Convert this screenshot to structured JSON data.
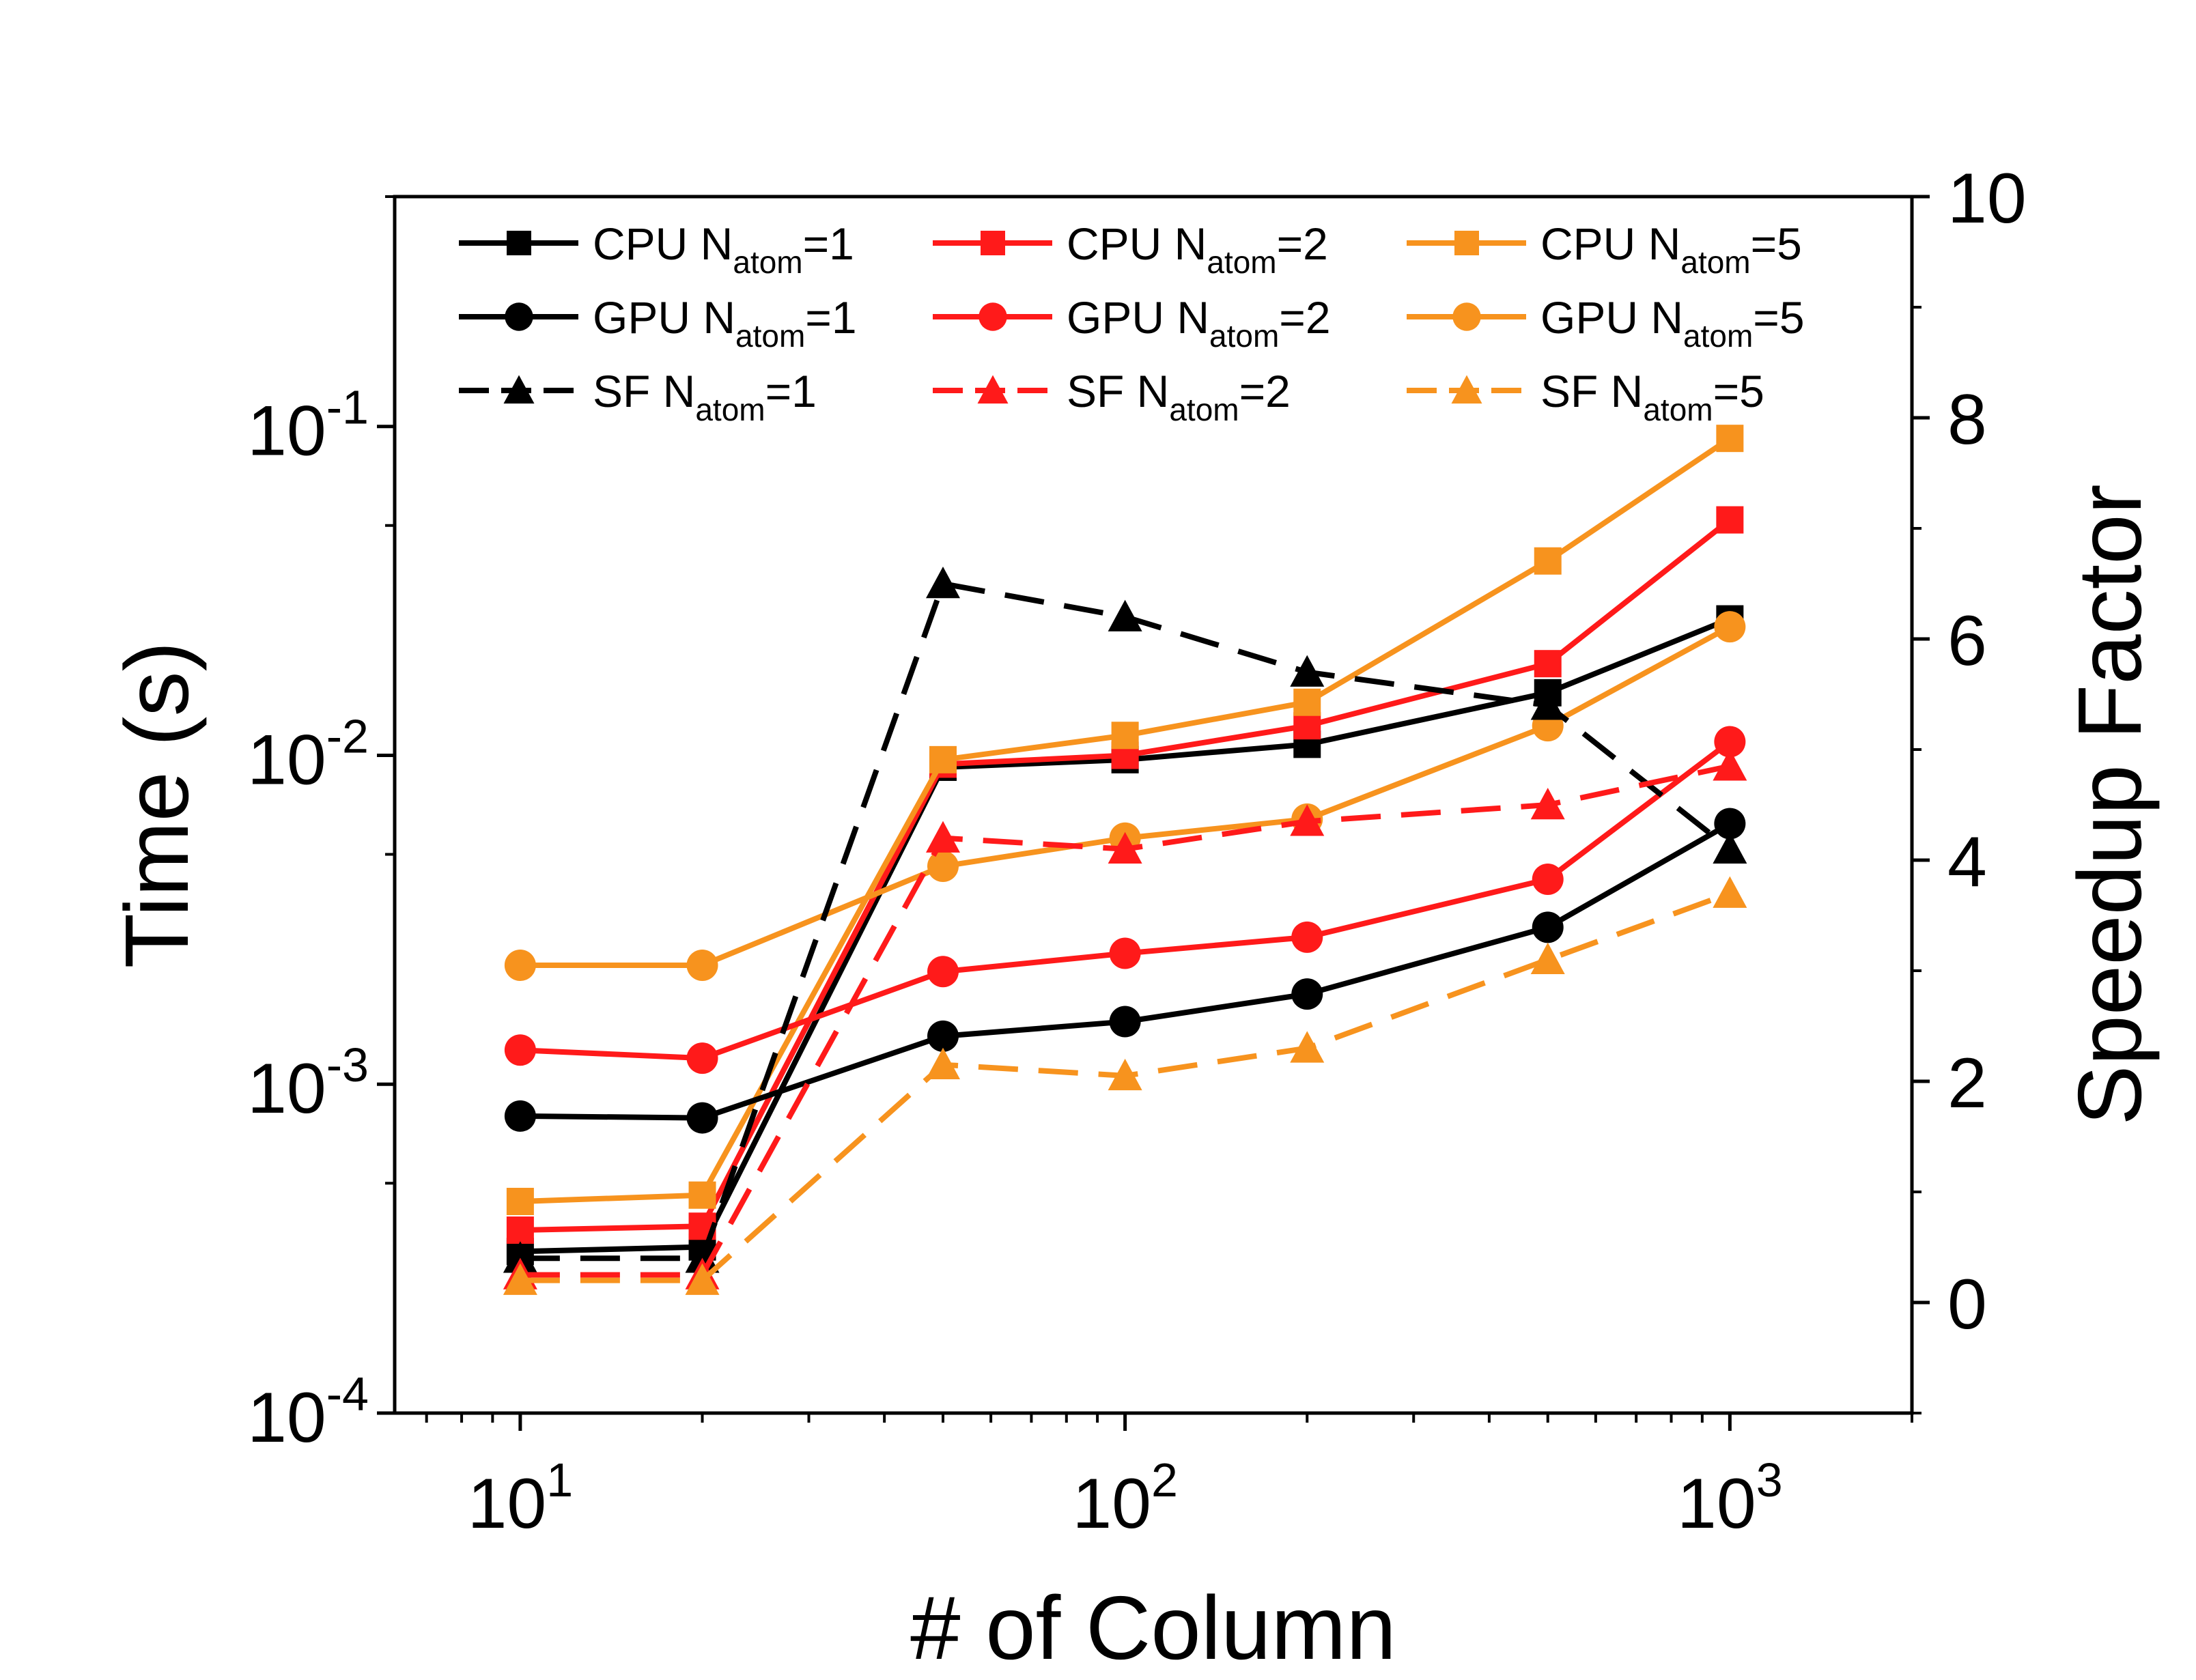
{
  "chart_data": {
    "type": "line",
    "title": "",
    "xlabel": "# of Column",
    "ylabel_left": "Time (s)",
    "ylabel_right": "Speedup Factor",
    "x_scale": "log",
    "y_left_scale": "log",
    "y_right_scale": "linear",
    "xlim": [
      6.2,
      2000
    ],
    "ylim_left": [
      0.0001,
      0.5
    ],
    "ylim_right": [
      -1,
      10
    ],
    "x_ticks": [
      10,
      100,
      1000
    ],
    "x_tick_labels": [
      {
        "base": "10",
        "exp": "1"
      },
      {
        "base": "10",
        "exp": "2"
      },
      {
        "base": "10",
        "exp": "3"
      }
    ],
    "y_left_ticks": [
      0.0001,
      0.001,
      0.01,
      0.1
    ],
    "y_left_tick_labels": [
      {
        "base": "10",
        "exp": "-4"
      },
      {
        "base": "10",
        "exp": "-3"
      },
      {
        "base": "10",
        "exp": "-2"
      },
      {
        "base": "10",
        "exp": "-1"
      }
    ],
    "y_right_ticks": [
      0,
      2,
      4,
      6,
      8,
      10
    ],
    "y_right_tick_labels": [
      "0",
      "2",
      "4",
      "6",
      "8",
      "10"
    ],
    "grid": false,
    "legend_position": "top",
    "x": [
      10,
      20,
      50,
      100,
      200,
      500,
      1000
    ],
    "series": [
      {
        "name": "CPU N",
        "sub": "atom",
        "suffix": "=1",
        "axis": "left",
        "color": "#000000",
        "marker": "square",
        "dash": "solid",
        "values": [
          0.00031,
          0.00032,
          0.0092,
          0.0097,
          0.0108,
          0.0155,
          0.026
        ]
      },
      {
        "name": "CPU N",
        "sub": "atom",
        "suffix": "=2",
        "axis": "left",
        "color": "#ff1a1a",
        "marker": "square",
        "dash": "solid",
        "values": [
          0.00036,
          0.00037,
          0.0094,
          0.01,
          0.0123,
          0.019,
          0.052
        ]
      },
      {
        "name": "CPU N",
        "sub": "atom",
        "suffix": "=5",
        "axis": "left",
        "color": "#f7931e",
        "marker": "square",
        "dash": "solid",
        "values": [
          0.00044,
          0.00046,
          0.0097,
          0.0115,
          0.0145,
          0.039,
          0.092
        ]
      },
      {
        "name": "GPU N",
        "sub": "atom",
        "suffix": "=1",
        "axis": "left",
        "color": "#000000",
        "marker": "circle",
        "dash": "solid",
        "values": [
          0.0008,
          0.00079,
          0.0014,
          0.00155,
          0.00188,
          0.003,
          0.0062
        ]
      },
      {
        "name": "GPU N",
        "sub": "atom",
        "suffix": "=2",
        "axis": "left",
        "color": "#ff1a1a",
        "marker": "circle",
        "dash": "solid",
        "values": [
          0.00127,
          0.0012,
          0.0022,
          0.0025,
          0.0028,
          0.0042,
          0.011
        ]
      },
      {
        "name": "GPU N",
        "sub": "atom",
        "suffix": "=5",
        "axis": "left",
        "color": "#f7931e",
        "marker": "circle",
        "dash": "solid",
        "values": [
          0.0023,
          0.0023,
          0.0046,
          0.0056,
          0.0064,
          0.0123,
          0.0246
        ]
      },
      {
        "name": "SF N",
        "sub": "atom",
        "suffix": "=1",
        "axis": "right",
        "color": "#000000",
        "marker": "triangle",
        "dash": "dashed",
        "values": [
          0.4,
          0.4,
          6.5,
          6.2,
          5.7,
          5.4,
          4.1
        ]
      },
      {
        "name": "SF N",
        "sub": "atom",
        "suffix": "=2",
        "axis": "right",
        "color": "#ff1a1a",
        "marker": "triangle",
        "dash": "dashed",
        "values": [
          0.25,
          0.25,
          4.2,
          4.1,
          4.35,
          4.5,
          4.85
        ]
      },
      {
        "name": "SF N",
        "sub": "atom",
        "suffix": "=5",
        "axis": "right",
        "color": "#f7931e",
        "marker": "triangle",
        "dash": "dashed",
        "values": [
          0.2,
          0.2,
          2.15,
          2.05,
          2.3,
          3.1,
          3.7
        ]
      }
    ]
  }
}
